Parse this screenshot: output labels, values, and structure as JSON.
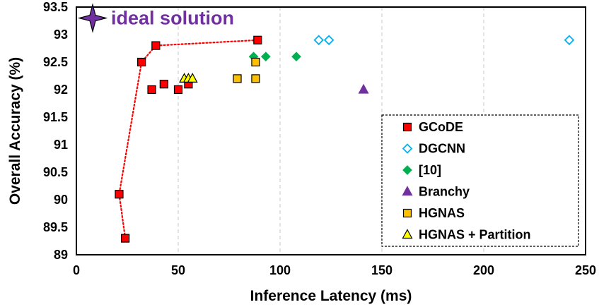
{
  "chart_data": {
    "type": "scatter",
    "xlabel": "Inference Latency (ms)",
    "ylabel": "Overall Accuracy (%)",
    "xlim": [
      0,
      250
    ],
    "ylim": [
      89,
      93.5
    ],
    "x_ticks": [
      "0",
      "50",
      "100",
      "150",
      "200",
      "250"
    ],
    "y_ticks": [
      "89",
      "89.5",
      "90",
      "90.5",
      "91",
      "91.5",
      "92",
      "92.5",
      "93",
      "93.5"
    ],
    "grid": "vertical dashed",
    "legend_position": "bottom-right",
    "annotation": {
      "text": "ideal solution",
      "x": 8,
      "y": 93.3,
      "color": "#7030a0"
    },
    "series": [
      {
        "name": "GCoDE",
        "marker": "square",
        "fill": "#ff0000",
        "stroke": "#000000",
        "points": [
          [
            24,
            89.3
          ],
          [
            21,
            90.1
          ],
          [
            32,
            92.5
          ],
          [
            39,
            92.8
          ],
          [
            89,
            92.9
          ],
          [
            37,
            92.0
          ],
          [
            43,
            92.1
          ],
          [
            50,
            92.0
          ],
          [
            55,
            92.1
          ]
        ],
        "frontier": [
          [
            24,
            89.3
          ],
          [
            21,
            90.1
          ],
          [
            32,
            92.5
          ],
          [
            39,
            92.8
          ],
          [
            89,
            92.9
          ]
        ],
        "frontier_color": "#ff0000"
      },
      {
        "name": "DGCNN",
        "marker": "diamond-open",
        "fill": "#ffffff",
        "stroke": "#00b0f0",
        "points": [
          [
            119,
            92.9
          ],
          [
            124,
            92.9
          ],
          [
            242,
            92.9
          ]
        ]
      },
      {
        "name": "[10]",
        "marker": "diamond",
        "fill": "#00b050",
        "stroke": "#00b050",
        "points": [
          [
            87,
            92.6
          ],
          [
            93,
            92.6
          ],
          [
            108,
            92.6
          ]
        ]
      },
      {
        "name": "Branchy",
        "marker": "triangle",
        "fill": "#7030a0",
        "stroke": "#7030a0",
        "points": [
          [
            141,
            92.0
          ]
        ]
      },
      {
        "name": "HGNAS",
        "marker": "square",
        "fill": "#ffc000",
        "stroke": "#000000",
        "points": [
          [
            79,
            92.2
          ],
          [
            88,
            92.2
          ],
          [
            88,
            92.5
          ]
        ]
      },
      {
        "name": "HGNAS + Partition",
        "marker": "triangle",
        "fill": "#ffff00",
        "stroke": "#000000",
        "points": [
          [
            53,
            92.2
          ],
          [
            55,
            92.2
          ],
          [
            57,
            92.2
          ]
        ]
      }
    ]
  }
}
